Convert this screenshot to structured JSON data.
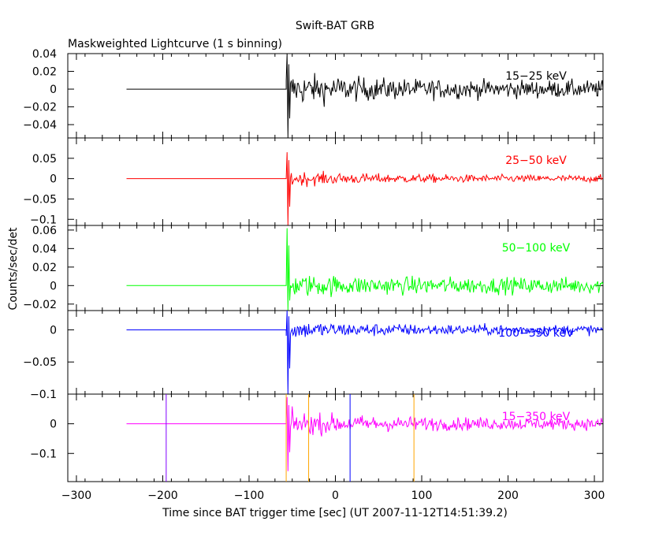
{
  "chart_data": {
    "type": "line",
    "title": "Swift-BAT GRB",
    "subtitle": "Maskweighted Lightcurve (1 s binning)",
    "xlabel": "Time since BAT trigger time [sec] (UT 2007-11-12T14:51:39.2)",
    "ylabel": "Counts/sec/det",
    "xlim": [
      -310,
      310
    ],
    "xticks": [
      -300,
      -200,
      -100,
      0,
      100,
      200,
      300
    ],
    "xtick_labels": [
      "−300",
      "−200",
      "−100",
      "0",
      "100",
      "200",
      "300"
    ],
    "data_start": -242,
    "burst_start": -57,
    "data_end": 310,
    "panels": [
      {
        "band": "15−25 keV",
        "color": "#000000",
        "ylim": [
          -0.055,
          0.04
        ],
        "yticks": [
          0.04,
          0.02,
          0,
          -0.02,
          -0.04
        ],
        "ytick_labels": [
          "0.04",
          "0.02",
          "0",
          "−0.02",
          "−0.04"
        ],
        "spike_min": -0.055,
        "spike_max": 0.04,
        "noise_early": 0.018,
        "noise_late": 0.009,
        "markers": []
      },
      {
        "band": "25−50 keV",
        "color": "#ff0000",
        "ylim": [
          -0.115,
          0.1
        ],
        "yticks": [
          0.05,
          0,
          -0.05,
          -0.1
        ],
        "ytick_labels": [
          "0.05",
          "0",
          "−0.05",
          "−0.1"
        ],
        "spike_min": -0.115,
        "spike_max": 0.065,
        "noise_early": 0.018,
        "noise_late": 0.008,
        "markers": []
      },
      {
        "band": "50−100 keV",
        "color": "#00ff00",
        "ylim": [
          -0.027,
          0.065
        ],
        "yticks": [
          0.06,
          0.04,
          0.02,
          0,
          -0.02
        ],
        "ytick_labels": [
          "0.06",
          "0.04",
          "0.02",
          "0",
          "−0.02"
        ],
        "spike_min": -0.027,
        "spike_max": 0.062,
        "noise_early": 0.012,
        "noise_late": 0.008,
        "markers": []
      },
      {
        "band": "100−350 keV",
        "color": "#0000ff",
        "ylim": [
          -0.1,
          0.03
        ],
        "yticks": [
          0,
          -0.05,
          -0.1
        ],
        "ytick_labels": [
          "0",
          "−0.05",
          "−0.1"
        ],
        "spike_min": -0.1,
        "spike_max": 0.03,
        "noise_early": 0.014,
        "noise_late": 0.007,
        "markers": []
      },
      {
        "band": "15−350 keV",
        "color": "#ff00ff",
        "ylim": [
          -0.195,
          0.1
        ],
        "yticks": [
          0,
          -0.1
        ],
        "ytick_labels": [
          "0",
          "−0.1"
        ],
        "spike_min": -0.16,
        "spike_max": 0.09,
        "noise_early": 0.04,
        "noise_late": 0.018,
        "markers": [
          {
            "t": -196,
            "color": "#8000ff"
          },
          {
            "t": -57,
            "color": "#ffa500"
          },
          {
            "t": -31,
            "color": "#ffa500"
          },
          {
            "t": 17,
            "color": "#0000ff"
          },
          {
            "t": 91,
            "color": "#ffa500"
          }
        ]
      }
    ]
  }
}
